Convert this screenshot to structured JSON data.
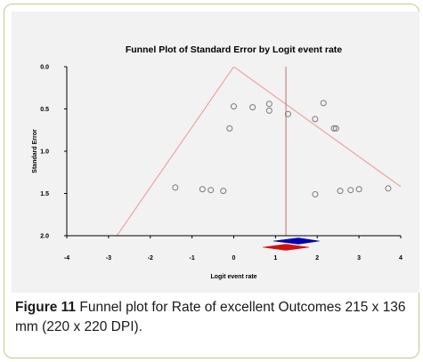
{
  "chart_data": {
    "type": "scatter",
    "title": "Funnel Plot of Standard Error by Logit event rate",
    "xlabel": "Logit event rate",
    "ylabel": "Standard Error",
    "xlim": [
      -4,
      4
    ],
    "ylim": [
      0.0,
      2.0
    ],
    "y_reversed": true,
    "x_ticks": [
      "-4",
      "-3",
      "-2",
      "-1",
      "0",
      "1",
      "2",
      "3",
      "4"
    ],
    "y_ticks": [
      "0.0",
      "0.5",
      "1.0",
      "1.5",
      "2.0"
    ],
    "grid": false,
    "points": [
      {
        "x": -1.4,
        "y": 1.43
      },
      {
        "x": -0.75,
        "y": 1.45
      },
      {
        "x": -0.55,
        "y": 1.46
      },
      {
        "x": -0.25,
        "y": 1.47
      },
      {
        "x": -0.1,
        "y": 0.73
      },
      {
        "x": 0.0,
        "y": 0.47
      },
      {
        "x": 0.45,
        "y": 0.48
      },
      {
        "x": 0.85,
        "y": 0.44
      },
      {
        "x": 0.85,
        "y": 0.52
      },
      {
        "x": 1.3,
        "y": 0.56
      },
      {
        "x": 1.95,
        "y": 0.62
      },
      {
        "x": 1.95,
        "y": 1.51
      },
      {
        "x": 2.15,
        "y": 0.43
      },
      {
        "x": 2.4,
        "y": 0.73
      },
      {
        "x": 2.45,
        "y": 0.73
      },
      {
        "x": 2.55,
        "y": 1.47
      },
      {
        "x": 2.8,
        "y": 1.46
      },
      {
        "x": 3.0,
        "y": 1.45
      },
      {
        "x": 3.7,
        "y": 1.44
      }
    ],
    "funnel_apex_x": 0.0,
    "funnel_lines": [
      {
        "name": "left",
        "from": [
          0.0,
          0.0
        ],
        "to": [
          -2.8,
          2.0
        ]
      },
      {
        "name": "right",
        "from": [
          0.0,
          0.0
        ],
        "to": [
          4.0,
          1.42
        ]
      }
    ],
    "effect_line_x": 1.25,
    "summary_diamonds": [
      {
        "name": "blue",
        "center": 1.55,
        "low": 0.95,
        "high": 2.05,
        "color": "#0000b0"
      },
      {
        "name": "red",
        "center": 1.25,
        "low": 0.7,
        "high": 1.8,
        "color": "#d01010"
      }
    ]
  },
  "caption": {
    "label": "Figure 11",
    "text": " Funnel plot for Rate of excellent Outcomes 215 x 136 mm (220 x 220 DPI)."
  },
  "colors": {
    "funnel": "#e8a6a6",
    "effect_line": "#c07070",
    "frame_border": "#b7cf8a",
    "panel": "#f2f2f2"
  }
}
